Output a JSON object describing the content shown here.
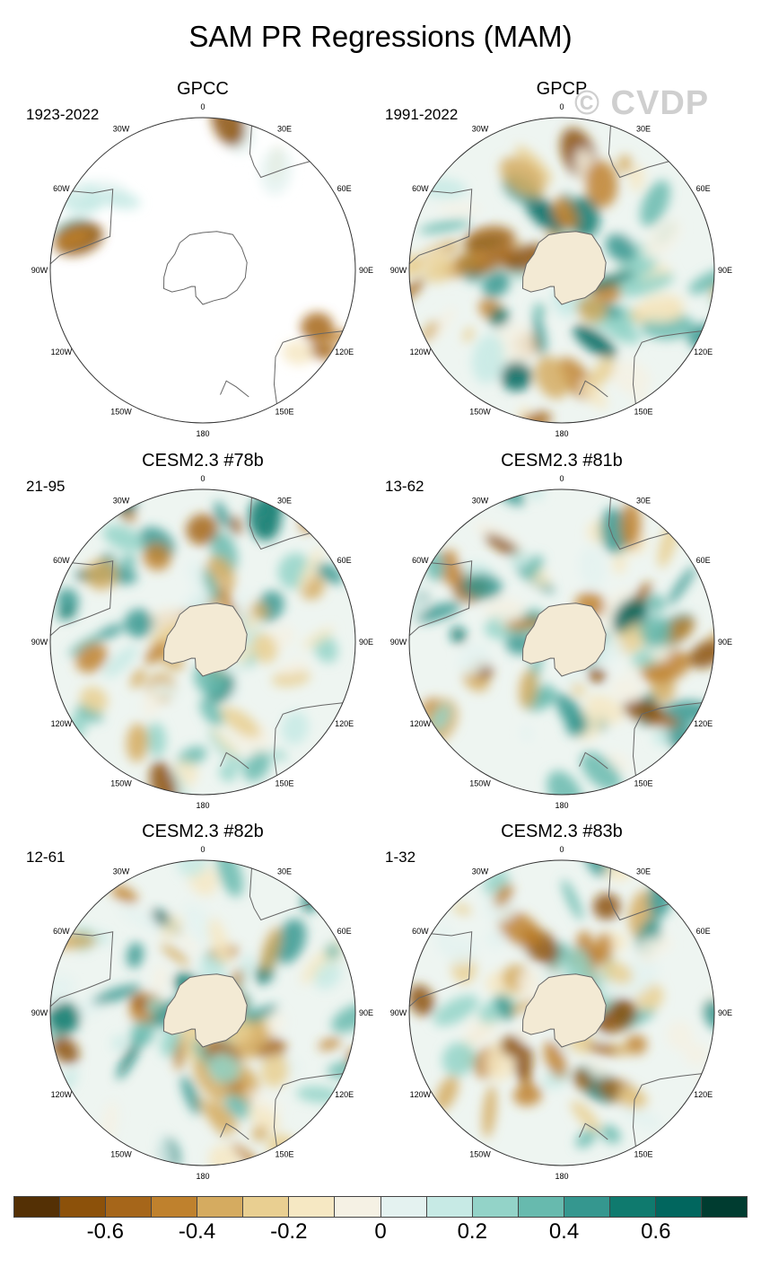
{
  "title": "SAM PR Regressions (MAM)",
  "watermark": "© CVDP",
  "lon_labels": [
    "0",
    "30E",
    "60E",
    "90E",
    "120E",
    "150E",
    "180",
    "150W",
    "120W",
    "90W",
    "60W",
    "30W"
  ],
  "panels": [
    {
      "name": "GPCC",
      "period": "1923-2022",
      "coverage": "land-only",
      "seed": 3
    },
    {
      "name": "GPCP",
      "period": "1991-2022",
      "coverage": "full",
      "seed": 11
    },
    {
      "name": "CESM2.3 #78b",
      "period": "21-95",
      "coverage": "full",
      "seed": 23
    },
    {
      "name": "CESM2.3 #81b",
      "period": "13-62",
      "coverage": "full",
      "seed": 37
    },
    {
      "name": "CESM2.3 #82b",
      "period": "12-61",
      "coverage": "full",
      "seed": 51
    },
    {
      "name": "CESM2.3 #83b",
      "period": "1-32",
      "coverage": "full",
      "seed": 67
    }
  ],
  "colorbar": {
    "colors": [
      "#543005",
      "#8c510a",
      "#a6661a",
      "#bf812d",
      "#d5ab60",
      "#e9cf91",
      "#f6e8c3",
      "#f5f1e4",
      "#e4f2f0",
      "#c7eae5",
      "#93d3c8",
      "#67baae",
      "#35978f",
      "#0f7a6e",
      "#01665e",
      "#003c30"
    ],
    "labels": [
      {
        "text": "-0.6",
        "pos": 2
      },
      {
        "text": "-0.4",
        "pos": 4
      },
      {
        "text": "-0.2",
        "pos": 6
      },
      {
        "text": "0",
        "pos": 8
      },
      {
        "text": "0.2",
        "pos": 10
      },
      {
        "text": "0.4",
        "pos": 12
      },
      {
        "text": "0.6",
        "pos": 14
      }
    ]
  }
}
